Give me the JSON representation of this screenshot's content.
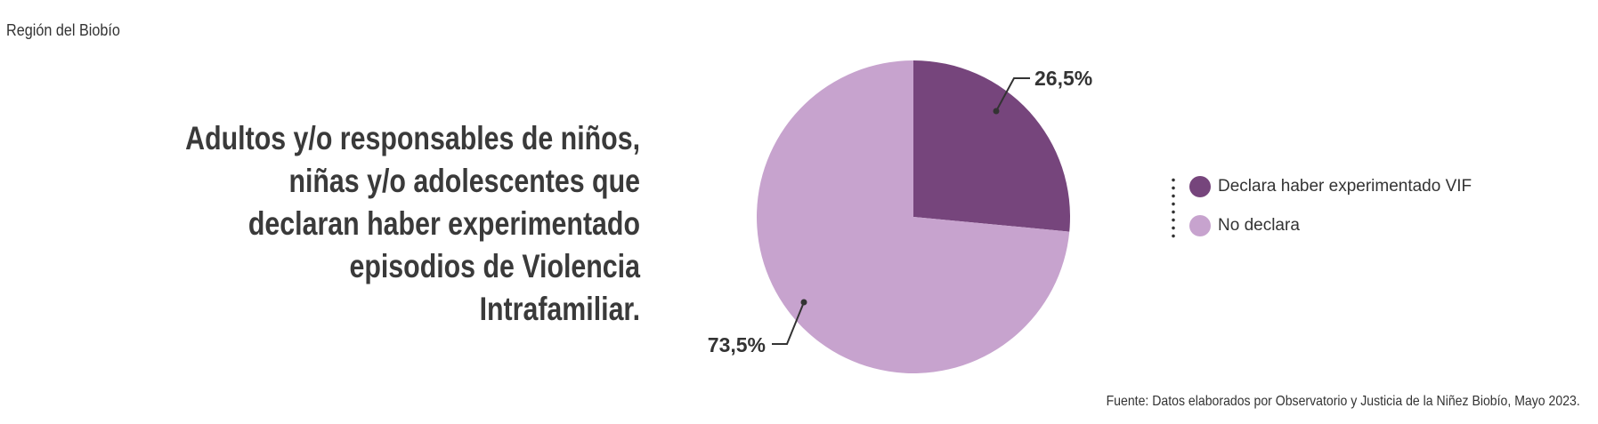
{
  "header": {
    "region": "Región del Biobío"
  },
  "chart_data": {
    "type": "pie",
    "title": "Adultos y/o responsables de niños, niñas y/o adolescentes que declaran haber experimentado episodios de Violencia Intrafamiliar.",
    "title_lines": [
      "Adultos y/o responsables de niños,",
      "niñas y/o adolescentes que",
      "declaran haber experimentado",
      "episodios de Violencia",
      "Intrafamiliar."
    ],
    "slices": [
      {
        "name": "Declara haber experimentado VIF",
        "value": 26.5,
        "label": "26,5%",
        "color": "#76457c"
      },
      {
        "name": "No declara",
        "value": 73.5,
        "label": "73,5%",
        "color": "#c7a3ce"
      }
    ],
    "legend_position": "right",
    "start_angle": "12 o'clock, clockwise"
  },
  "footer": {
    "source": "Fuente: Datos elaborados por Observatorio y Justicia de la Niñez Biobío, Mayo 2023."
  }
}
